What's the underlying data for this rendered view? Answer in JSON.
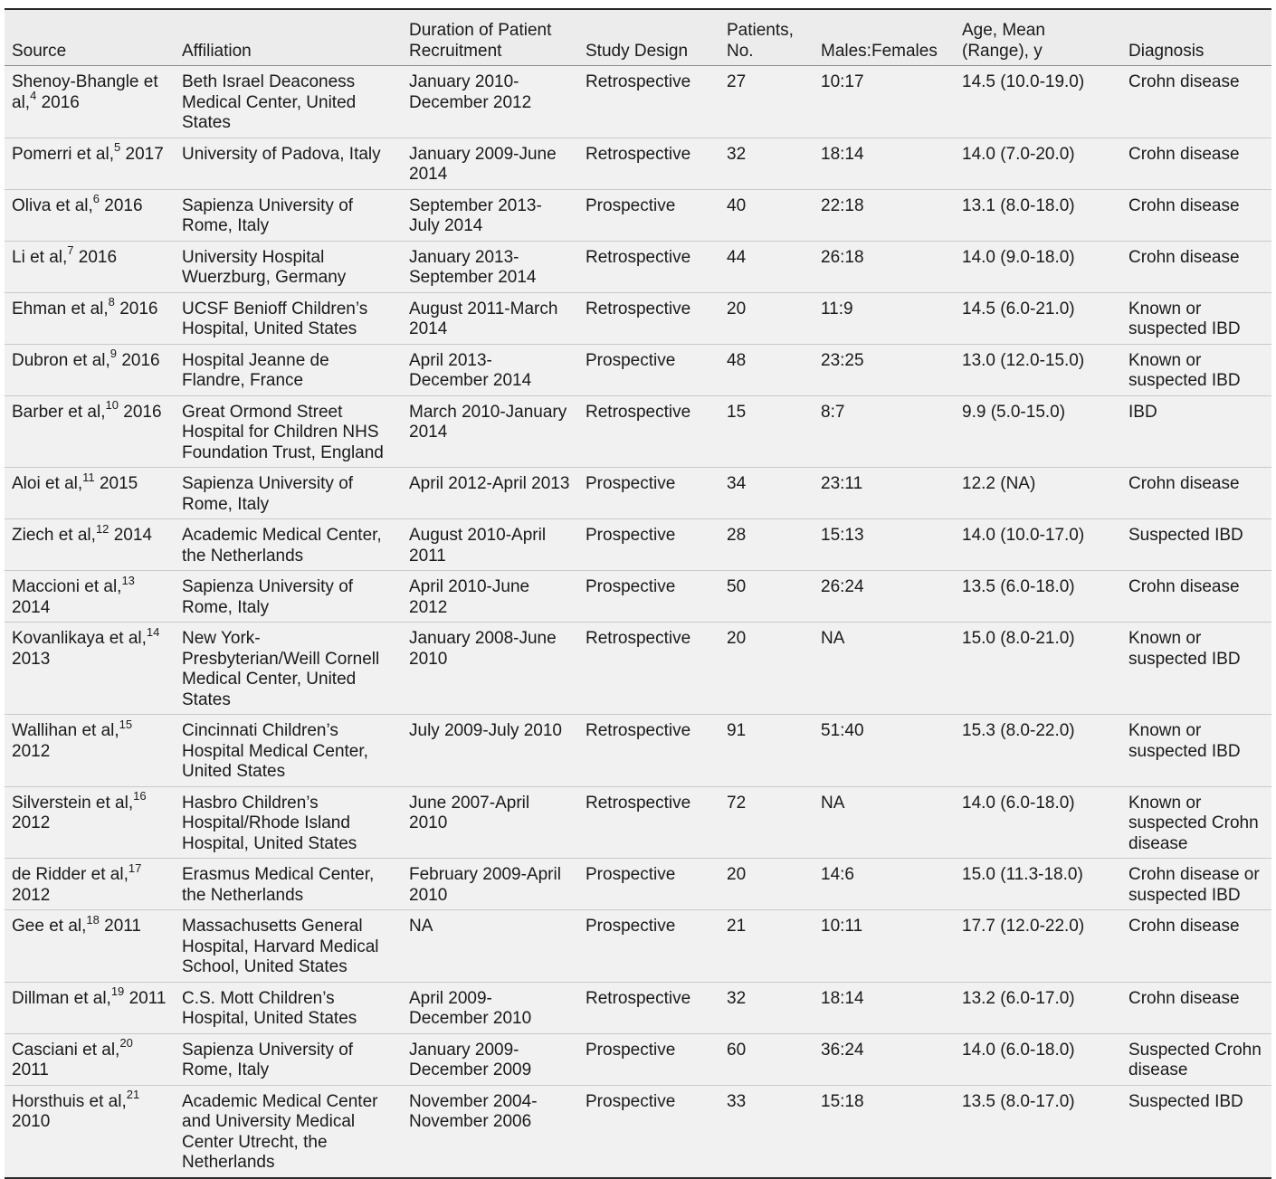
{
  "columns": [
    "Source",
    "Affiliation",
    "Duration of Patient Recruitment",
    "Study Design",
    "Patients, No.",
    "Males:Females",
    "Age, Mean (Range), y",
    "Diagnosis"
  ],
  "rows": [
    {
      "author": "Shenoy-Bhangle et al,",
      "ref": "4",
      "year": "2016",
      "affiliation": "Beth Israel Deaconess Medical Center, United States",
      "duration": "January 2010-December 2012",
      "design": "Retrospective",
      "patients": "27",
      "mf": "10:17",
      "age": "14.5 (10.0-19.0)",
      "diagnosis": "Crohn disease"
    },
    {
      "author": "Pomerri et al,",
      "ref": "5",
      "year": "2017",
      "affiliation": "University of Padova, Italy",
      "duration": "January 2009-June 2014",
      "design": "Retrospective",
      "patients": "32",
      "mf": "18:14",
      "age": "14.0 (7.0-20.0)",
      "diagnosis": "Crohn disease"
    },
    {
      "author": "Oliva et al,",
      "ref": "6",
      "year": "2016",
      "affiliation": "Sapienza University of Rome, Italy",
      "duration": "September 2013-July 2014",
      "design": "Prospective",
      "patients": "40",
      "mf": "22:18",
      "age": "13.1 (8.0-18.0)",
      "diagnosis": "Crohn disease"
    },
    {
      "author": "Li et al,",
      "ref": "7",
      "year": "2016",
      "affiliation": "University Hospital Wuerzburg, Germany",
      "duration": "January 2013-September 2014",
      "design": "Retrospective",
      "patients": "44",
      "mf": "26:18",
      "age": "14.0 (9.0-18.0)",
      "diagnosis": "Crohn disease"
    },
    {
      "author": "Ehman et al,",
      "ref": "8",
      "year": "2016",
      "affiliation": "UCSF Benioff Children’s Hospital, United States",
      "duration": "August 2011-March 2014",
      "design": "Retrospective",
      "patients": "20",
      "mf": "11:9",
      "age": "14.5 (6.0-21.0)",
      "diagnosis": "Known or suspected IBD"
    },
    {
      "author": "Dubron et al,",
      "ref": "9",
      "year": "2016",
      "affiliation": "Hospital Jeanne de Flandre, France",
      "duration": "April 2013-December 2014",
      "design": "Prospective",
      "patients": "48",
      "mf": "23:25",
      "age": "13.0 (12.0-15.0)",
      "diagnosis": "Known or suspected IBD"
    },
    {
      "author": "Barber et al,",
      "ref": "10",
      "year": "2016",
      "affiliation": "Great Ormond Street Hospital for Children NHS Foundation Trust, England",
      "duration": "March 2010-January 2014",
      "design": "Retrospective",
      "patients": "15",
      "mf": "8:7",
      "age": "9.9 (5.0-15.0)",
      "diagnosis": "IBD"
    },
    {
      "author": "Aloi et al,",
      "ref": "11",
      "year": "2015",
      "affiliation": "Sapienza University of Rome, Italy",
      "duration": "April 2012-April 2013",
      "design": "Prospective",
      "patients": "34",
      "mf": "23:11",
      "age": "12.2 (NA)",
      "diagnosis": "Crohn disease"
    },
    {
      "author": "Ziech et al,",
      "ref": "12",
      "year": "2014",
      "affiliation": "Academic Medical Center, the Netherlands",
      "duration": "August 2010-April 2011",
      "design": "Prospective",
      "patients": "28",
      "mf": "15:13",
      "age": "14.0 (10.0-17.0)",
      "diagnosis": "Suspected IBD"
    },
    {
      "author": "Maccioni et al,",
      "ref": "13",
      "year": "2014",
      "affiliation": "Sapienza University of Rome, Italy",
      "duration": "April 2010-June 2012",
      "design": "Prospective",
      "patients": "50",
      "mf": "26:24",
      "age": "13.5 (6.0-18.0)",
      "diagnosis": "Crohn disease"
    },
    {
      "author": "Kovanlikaya et al,",
      "ref": "14",
      "year": "2013",
      "affiliation": "New York-Presbyterian/Weill Cornell Medical Center, United States",
      "duration": "January 2008-June 2010",
      "design": "Retrospective",
      "patients": "20",
      "mf": "NA",
      "age": "15.0 (8.0-21.0)",
      "diagnosis": "Known or suspected IBD"
    },
    {
      "author": "Wallihan et al,",
      "ref": "15",
      "year": "2012",
      "affiliation": "Cincinnati Children’s Hospital Medical Center, United States",
      "duration": "July 2009-July 2010",
      "design": "Retrospective",
      "patients": "91",
      "mf": "51:40",
      "age": "15.3 (8.0-22.0)",
      "diagnosis": "Known or suspected IBD"
    },
    {
      "author": "Silverstein et al,",
      "ref": "16",
      "year": "2012",
      "affiliation": "Hasbro Children’s Hospital/Rhode Island Hospital, United States",
      "duration": "June 2007-April 2010",
      "design": "Retrospective",
      "patients": "72",
      "mf": "NA",
      "age": "14.0 (6.0-18.0)",
      "diagnosis": "Known or suspected Crohn disease"
    },
    {
      "author": "de Ridder et al,",
      "ref": "17",
      "year": "2012",
      "affiliation": "Erasmus Medical Center, the Netherlands",
      "duration": "February 2009-April 2010",
      "design": "Prospective",
      "patients": "20",
      "mf": "14:6",
      "age": "15.0 (11.3-18.0)",
      "diagnosis": "Crohn disease or suspected IBD"
    },
    {
      "author": "Gee et al,",
      "ref": "18",
      "year": "2011",
      "affiliation": "Massachusetts General Hospital, Harvard Medical School, United States",
      "duration": "NA",
      "design": "Prospective",
      "patients": "21",
      "mf": "10:11",
      "age": "17.7 (12.0-22.0)",
      "diagnosis": "Crohn disease"
    },
    {
      "author": "Dillman et al,",
      "ref": "19",
      "year": "2011",
      "affiliation": "C.S. Mott Children’s Hospital, United States",
      "duration": "April 2009-December 2010",
      "design": "Retrospective",
      "patients": "32",
      "mf": "18:14",
      "age": "13.2 (6.0-17.0)",
      "diagnosis": "Crohn disease"
    },
    {
      "author": "Casciani et al,",
      "ref": "20",
      "year": "2011",
      "affiliation": "Sapienza University of Rome, Italy",
      "duration": "January 2009-December 2009",
      "design": "Prospective",
      "patients": "60",
      "mf": "36:24",
      "age": "14.0 (6.0-18.0)",
      "diagnosis": "Suspected Crohn disease"
    },
    {
      "author": "Horsthuis et al,",
      "ref": "21",
      "year": "2010",
      "affiliation": "Academic Medical Center and University Medical Center Utrecht, the Netherlands",
      "duration": "November 2004-November 2006",
      "design": "Prospective",
      "patients": "33",
      "mf": "15:18",
      "age": "13.5 (8.0-17.0)",
      "diagnosis": "Suspected IBD"
    }
  ]
}
